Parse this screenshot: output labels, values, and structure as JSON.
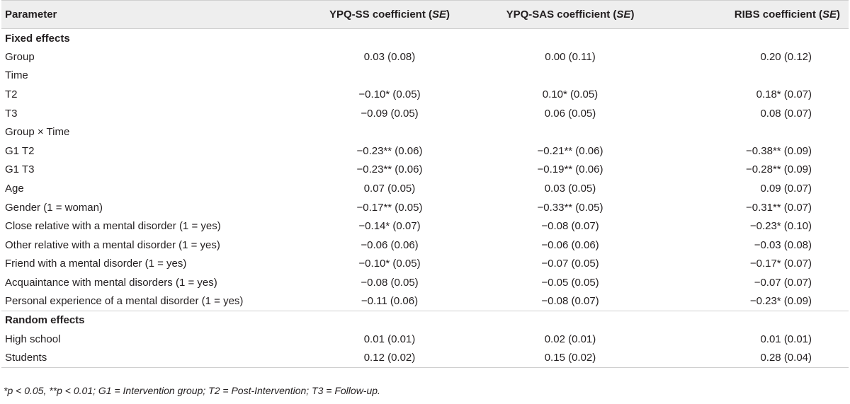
{
  "headers": [
    "Parameter",
    "YPQ-SS coefficient (",
    "YPQ-SAS coefficient (",
    "RIBS coefficient ("
  ],
  "header_se": "SE",
  "header_close": ")",
  "sections": [
    {
      "title": "Fixed effects",
      "rows": [
        {
          "label": "Group",
          "v": [
            "0.03 (0.08)",
            "0.00 (0.11)",
            "0.20 (0.12)"
          ]
        },
        {
          "label": "Time",
          "v": [
            "",
            "",
            ""
          ]
        },
        {
          "label": "T2",
          "v": [
            "−0.10* (0.05)",
            "0.10* (0.05)",
            "0.18* (0.07)"
          ]
        },
        {
          "label": "T3",
          "v": [
            "−0.09 (0.05)",
            "0.06 (0.05)",
            "0.08 (0.07)"
          ]
        },
        {
          "label": "Group × Time",
          "v": [
            "",
            "",
            ""
          ]
        },
        {
          "label": "G1 T2",
          "v": [
            "−0.23** (0.06)",
            "−0.21** (0.06)",
            "−0.38** (0.09)"
          ]
        },
        {
          "label": "G1 T3",
          "v": [
            "−0.23** (0.06)",
            "−0.19** (0.06)",
            "−0.28** (0.09)"
          ]
        },
        {
          "label": "Age",
          "v": [
            "0.07 (0.05)",
            "0.03 (0.05)",
            "0.09 (0.07)"
          ]
        },
        {
          "label": "Gender (1 = woman)",
          "v": [
            "−0.17** (0.05)",
            "−0.33** (0.05)",
            "−0.31** (0.07)"
          ]
        },
        {
          "label": "Close relative with a mental disorder (1 = yes)",
          "v": [
            "−0.14* (0.07)",
            "−0.08 (0.07)",
            "−0.23* (0.10)"
          ]
        },
        {
          "label": "Other relative with a mental disorder (1 = yes)",
          "v": [
            "−0.06 (0.06)",
            "−0.06 (0.06)",
            "−0.03 (0.08)"
          ]
        },
        {
          "label": "Friend with a mental disorder (1 = yes)",
          "v": [
            "−0.10* (0.05)",
            "−0.07 (0.05)",
            "−0.17* (0.07)"
          ]
        },
        {
          "label": "Acquaintance with mental disorders (1 = yes)",
          "v": [
            "−0.08 (0.05)",
            "−0.05 (0.05)",
            "−0.07 (0.07)"
          ]
        },
        {
          "label": "Personal experience of a mental disorder (1 = yes)",
          "v": [
            "−0.11 (0.06)",
            "−0.08 (0.07)",
            "−0.23* (0.09)"
          ]
        }
      ]
    },
    {
      "title": "Random effects",
      "rows": [
        {
          "label": "High school",
          "v": [
            "0.01 (0.01)",
            "0.02 (0.01)",
            "0.01 (0.01)"
          ]
        },
        {
          "label": "Students",
          "v": [
            "0.12 (0.02)",
            "0.15 (0.02)",
            "0.28 (0.04)"
          ]
        }
      ]
    }
  ],
  "footnote": "*p < 0.05, **p < 0.01; G1 = Intervention group; T2 = Post-Intervention; T3 = Follow-up."
}
